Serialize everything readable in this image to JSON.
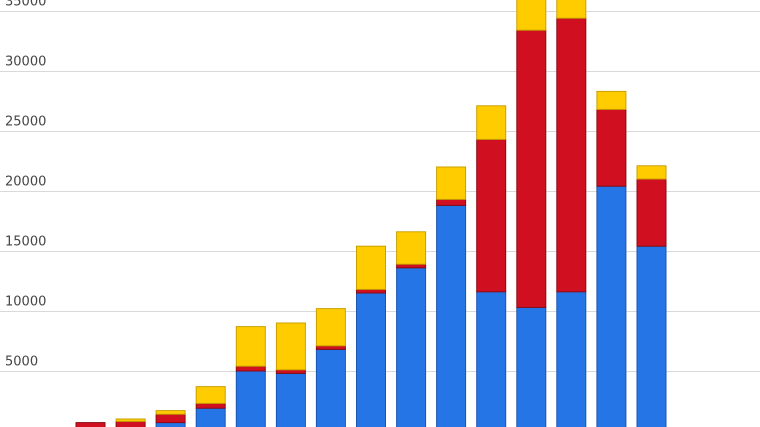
{
  "chart_data": {
    "type": "bar",
    "stacked": true,
    "title": "",
    "xlabel": "",
    "ylabel": "",
    "ylim": [
      0,
      35000
    ],
    "grid": true,
    "legend": "none",
    "y_ticks": [
      5000,
      10000,
      15000,
      20000,
      25000,
      30000,
      35000
    ],
    "categories": [
      "",
      "",
      "",
      "",
      "",
      "",
      "",
      "",
      "",
      "",
      "",
      "",
      "",
      "",
      ""
    ],
    "series": [
      {
        "color": "#2575e6",
        "stroke": "#1b55b0",
        "values": [
          0,
          200,
          700,
          1900,
          5000,
          4800,
          6800,
          11500,
          13600,
          18800,
          11600,
          10300,
          11600,
          20400,
          15400
        ]
      },
      {
        "color": "#d01020",
        "stroke": "#8a0a14",
        "values": [
          700,
          600,
          700,
          400,
          400,
          300,
          300,
          300,
          300,
          500,
          12700,
          23100,
          22800,
          6400,
          5600
        ]
      },
      {
        "color": "#ffcc00",
        "stroke": "#caa000",
        "values": [
          0,
          200,
          300,
          1400,
          3300,
          3900,
          3100,
          3600,
          2700,
          2700,
          2800,
          2700,
          1900,
          1500,
          1100
        ]
      }
    ]
  }
}
